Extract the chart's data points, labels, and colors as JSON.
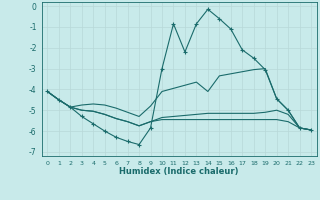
{
  "xlabel": "Humidex (Indice chaleur)",
  "background_color": "#c8eaea",
  "grid_color": "#b8d8d8",
  "line_color": "#1a6b6b",
  "xlim": [
    -0.5,
    23.5
  ],
  "ylim": [
    -7.2,
    0.2
  ],
  "xticks": [
    0,
    1,
    2,
    3,
    4,
    5,
    6,
    7,
    8,
    9,
    10,
    11,
    12,
    13,
    14,
    15,
    16,
    17,
    18,
    19,
    20,
    21,
    22,
    23
  ],
  "yticks": [
    0,
    -1,
    -2,
    -3,
    -4,
    -5,
    -6,
    -7
  ],
  "line1_x": [
    0,
    1,
    2,
    3,
    4,
    5,
    6,
    7,
    8,
    9,
    10,
    11,
    12,
    13,
    14,
    15,
    16,
    17,
    18,
    19,
    20,
    21,
    22,
    23
  ],
  "line1_y": [
    -4.1,
    -4.5,
    -4.85,
    -5.3,
    -5.65,
    -6.0,
    -6.3,
    -6.5,
    -6.65,
    -5.85,
    -3.0,
    -0.85,
    -2.2,
    -0.85,
    -0.15,
    -0.6,
    -1.1,
    -2.1,
    -2.5,
    -3.05,
    -4.45,
    -5.0,
    -5.85,
    -5.95
  ],
  "line2_x": [
    0,
    1,
    2,
    3,
    4,
    5,
    6,
    7,
    8,
    9,
    10,
    11,
    12,
    13,
    14,
    15,
    16,
    17,
    18,
    19,
    20,
    21,
    22,
    23
  ],
  "line2_y": [
    -4.1,
    -4.5,
    -4.85,
    -4.75,
    -4.7,
    -4.75,
    -4.9,
    -5.1,
    -5.3,
    -4.8,
    -4.1,
    -3.95,
    -3.8,
    -3.65,
    -4.1,
    -3.35,
    -3.25,
    -3.15,
    -3.05,
    -3.0,
    -4.45,
    -5.0,
    -5.85,
    -5.95
  ],
  "line3_x": [
    0,
    1,
    2,
    3,
    4,
    5,
    6,
    7,
    8,
    9,
    10,
    11,
    12,
    13,
    14,
    15,
    16,
    17,
    18,
    19,
    20,
    21,
    22,
    23
  ],
  "line3_y": [
    -4.1,
    -4.5,
    -4.85,
    -5.0,
    -5.05,
    -5.2,
    -5.4,
    -5.55,
    -5.75,
    -5.55,
    -5.35,
    -5.3,
    -5.25,
    -5.2,
    -5.15,
    -5.15,
    -5.15,
    -5.15,
    -5.15,
    -5.1,
    -5.0,
    -5.2,
    -5.85,
    -5.95
  ],
  "line4_x": [
    0,
    1,
    2,
    3,
    4,
    5,
    6,
    7,
    8,
    9,
    10,
    11,
    12,
    13,
    14,
    15,
    16,
    17,
    18,
    19,
    20,
    21,
    22,
    23
  ],
  "line4_y": [
    -4.1,
    -4.5,
    -4.85,
    -5.0,
    -5.05,
    -5.2,
    -5.4,
    -5.55,
    -5.75,
    -5.55,
    -5.45,
    -5.45,
    -5.45,
    -5.45,
    -5.45,
    -5.45,
    -5.45,
    -5.45,
    -5.45,
    -5.45,
    -5.45,
    -5.55,
    -5.85,
    -5.95
  ]
}
